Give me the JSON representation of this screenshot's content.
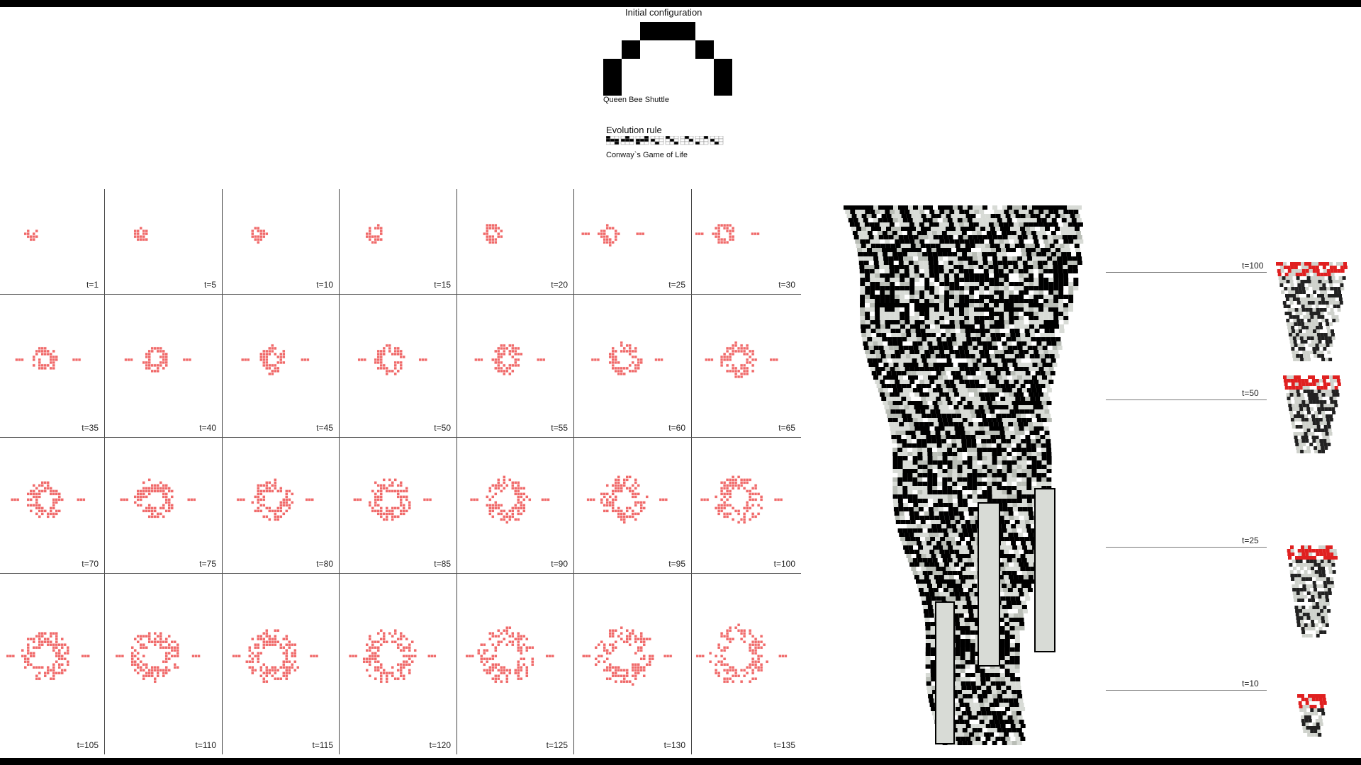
{
  "header": {
    "initial_title": "Initial configuration",
    "pattern_name": "Queen Bee Shuttle",
    "rule_title": "Evolution rule",
    "rule_name": "Conway`s Game of Life"
  },
  "colors": {
    "cell": "#f06a6a",
    "cell_dark": "#d94848",
    "line": "#444444",
    "block": "#000000",
    "voxel_light": "#d8dbd6"
  },
  "frames": [
    {
      "label": "t=1"
    },
    {
      "label": "t=5"
    },
    {
      "label": "t=10"
    },
    {
      "label": "t=15"
    },
    {
      "label": "t=20"
    },
    {
      "label": "t=25"
    },
    {
      "label": "t=30"
    },
    {
      "label": "t=35"
    },
    {
      "label": "t=40"
    },
    {
      "label": "t=45"
    },
    {
      "label": "t=50"
    },
    {
      "label": "t=55"
    },
    {
      "label": "t=60"
    },
    {
      "label": "t=65"
    },
    {
      "label": "t=70"
    },
    {
      "label": "t=75"
    },
    {
      "label": "t=80"
    },
    {
      "label": "t=85"
    },
    {
      "label": "t=90"
    },
    {
      "label": "t=95"
    },
    {
      "label": "t=100"
    },
    {
      "label": "t=105"
    },
    {
      "label": "t=110"
    },
    {
      "label": "t=115"
    },
    {
      "label": "t=120"
    },
    {
      "label": "t=125"
    },
    {
      "label": "t=130"
    },
    {
      "label": "t=135"
    }
  ],
  "stack_ticks": [
    {
      "label": "t=100"
    },
    {
      "label": "t=50"
    },
    {
      "label": "t=25"
    },
    {
      "label": "t=10"
    }
  ]
}
